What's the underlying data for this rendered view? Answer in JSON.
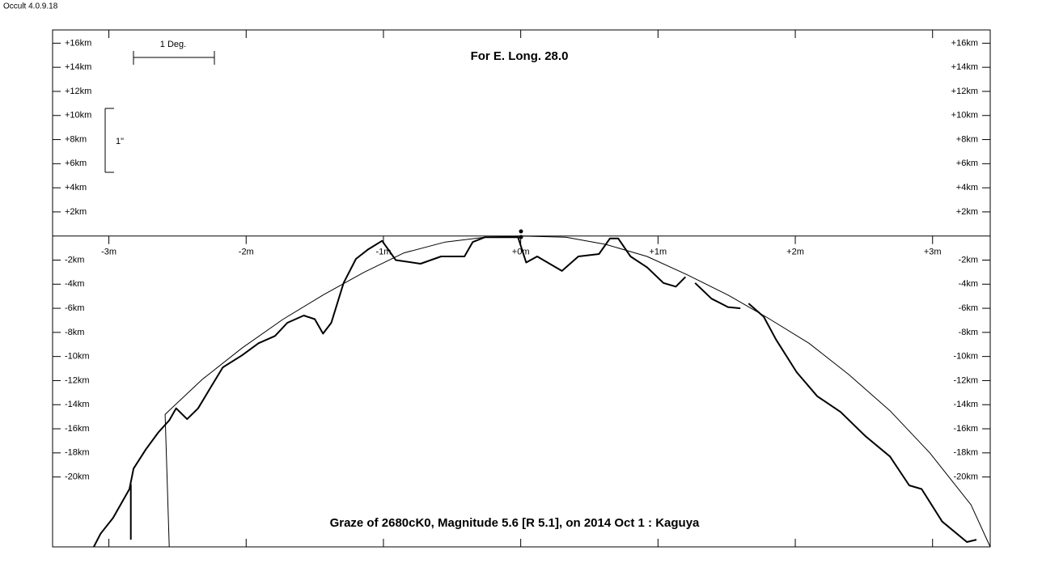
{
  "app_label": "Occult 4.0.9.18",
  "chart_data": {
    "type": "line",
    "title": "For E. Long. 28.0",
    "subtitle": "Graze of  2680cK0,  Magnitude 5.6 [R 5.1],  on 2014 Oct  1  :  Kaguya",
    "scale_x_label": "1 Deg.",
    "scale_y_label": "1\"",
    "xlim": [
      -3.41,
      3.42
    ],
    "ylim": [
      -25.8,
      17.1
    ],
    "xticks": [
      {
        "value": -3,
        "label": "-3m"
      },
      {
        "value": -2,
        "label": "-2m"
      },
      {
        "value": -1,
        "label": "-1m"
      },
      {
        "value": 0,
        "label": "+0m"
      },
      {
        "value": 1,
        "label": "+1m"
      },
      {
        "value": 2,
        "label": "+2m"
      },
      {
        "value": 3,
        "label": "+3m"
      }
    ],
    "yticks": [
      {
        "value": 16,
        "label": "+16km"
      },
      {
        "value": 14,
        "label": "+14km"
      },
      {
        "value": 12,
        "label": "+12km"
      },
      {
        "value": 10,
        "label": "+10km"
      },
      {
        "value": 8,
        "label": "+8km"
      },
      {
        "value": 6,
        "label": "+6km"
      },
      {
        "value": 4,
        "label": "+4km"
      },
      {
        "value": 2,
        "label": "+2km"
      },
      {
        "value": -2,
        "label": "-2km"
      },
      {
        "value": -4,
        "label": "-4km"
      },
      {
        "value": -6,
        "label": "-6km"
      },
      {
        "value": -8,
        "label": "-8km"
      },
      {
        "value": -10,
        "label": "-10km"
      },
      {
        "value": -12,
        "label": "-12km"
      },
      {
        "value": -14,
        "label": "-14km"
      },
      {
        "value": -16,
        "label": "-16km"
      },
      {
        "value": -18,
        "label": "-18km"
      },
      {
        "value": -20,
        "label": "-20km"
      }
    ],
    "series": [
      {
        "color": "#000000",
        "width": 1,
        "x": [
          -2.56,
          -2.59,
          -2.32,
          -2.03,
          -1.73,
          -1.44,
          -1.14,
          -0.85,
          -0.55,
          -0.26,
          0,
          0.33,
          0.62,
          0.92,
          1.21,
          1.51,
          1.8,
          2.1,
          2.39,
          2.69,
          2.98,
          3.28,
          3.42
        ],
        "values": [
          -25.8,
          -14.8,
          -11.9,
          -9.3,
          -6.9,
          -4.9,
          -3.0,
          -1.4,
          -0.5,
          -0.1,
          0,
          -0.1,
          -0.7,
          -1.7,
          -3.2,
          -4.9,
          -6.8,
          -8.9,
          -11.5,
          -14.5,
          -18.0,
          -22.3,
          -25.8
        ]
      },
      {
        "color": "#000000",
        "width": 2,
        "x": [
          -3.11,
          -3.06,
          -2.97,
          -2.85,
          -2.82,
          -2.73,
          -2.64,
          -2.56,
          -2.51,
          -2.43,
          -2.35,
          -2.26,
          -2.17,
          -2.03,
          -1.91,
          -1.79,
          -1.7,
          -1.58,
          -1.5,
          -1.44,
          -1.38,
          -1.29,
          -1.2,
          -1.11,
          -1.01,
          -0.91,
          -0.73,
          -0.58,
          -0.41,
          -0.35,
          -0.26,
          -0.02,
          0.04,
          0.12,
          0.3,
          0.42,
          0.57,
          0.65,
          0.71,
          0.8,
          0.92,
          1.04,
          1.13,
          1.2,
          1.24,
          1.27,
          1.39,
          1.51,
          1.6,
          1.63,
          1.66,
          1.77,
          1.86,
          2.01,
          2.16,
          2.33,
          2.51,
          2.69,
          2.83,
          2.92,
          3.07,
          3.25,
          3.32
        ],
        "values": [
          -25.8,
          -24.7,
          -23.4,
          -21.0,
          -19.3,
          -17.7,
          -16.3,
          -15.3,
          -14.3,
          -15.2,
          -14.3,
          -12.6,
          -10.9,
          -9.9,
          -8.9,
          -8.3,
          -7.2,
          -6.6,
          -6.9,
          -8.1,
          -7.2,
          -3.9,
          -1.9,
          -1.1,
          -0.4,
          -2.0,
          -2.3,
          -1.7,
          -1.7,
          -0.5,
          -0.1,
          -0.1,
          -2.2,
          -1.7,
          -2.9,
          -1.7,
          -1.5,
          -0.2,
          -0.2,
          -1.7,
          -2.6,
          -3.9,
          -4.2,
          -3.4,
          null,
          -3.9,
          -5.2,
          -5.9,
          -6.0,
          null,
          -5.6,
          -6.7,
          -8.6,
          -11.3,
          -13.3,
          -14.6,
          -16.6,
          -18.3,
          -20.7,
          -21.0,
          -23.7,
          -25.4,
          -25.2
        ]
      },
      {
        "color": "#000000",
        "width": 2,
        "x": [
          -2.84,
          -2.84
        ],
        "values": [
          -20.6,
          -25.2
        ]
      }
    ]
  }
}
